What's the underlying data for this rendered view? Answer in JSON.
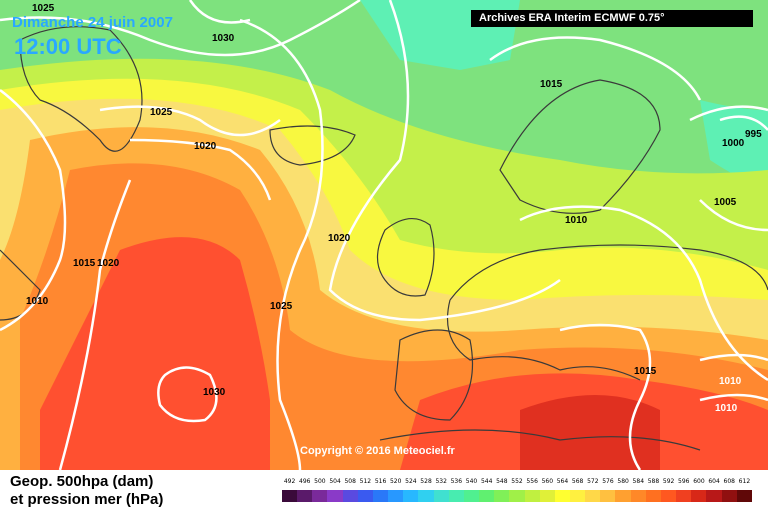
{
  "map": {
    "date": "Dimanche 24 juin 2007",
    "time": "12:00 UTC",
    "source": "Archives ERA Interim ECMWF 0.75°",
    "copyright": "Copyright © 2016 Meteociel.fr",
    "isobar_labels": [
      "1025",
      "1030",
      "1025",
      "1020",
      "1015",
      "1020",
      "1010",
      "1025",
      "1030",
      "1020",
      "1015",
      "1010",
      "1005",
      "1000",
      "995",
      "1015",
      "1010",
      "1010"
    ],
    "legend_line1": "Geop. 500hpa (dam)",
    "legend_line2": "et pression mer (hPa)",
    "scale_values": [
      "492",
      "496",
      "500",
      "504",
      "508",
      "512",
      "516",
      "520",
      "524",
      "528",
      "532",
      "536",
      "540",
      "544",
      "548",
      "552",
      "556",
      "560",
      "564",
      "568",
      "572",
      "576",
      "580",
      "584",
      "588",
      "592",
      "596",
      "600",
      "604",
      "608",
      "612"
    ],
    "scale_colors": [
      "#3a0a3a",
      "#5a1a6a",
      "#7a2a9a",
      "#8a3ac8",
      "#5a4ae0",
      "#3a5af0",
      "#2a78f8",
      "#2898ff",
      "#28b8ff",
      "#30d0f0",
      "#40e0d0",
      "#48ecb0",
      "#50f090",
      "#60f070",
      "#80f058",
      "#a0f048",
      "#c0f040",
      "#e0f038",
      "#ffff30",
      "#fff040",
      "#ffd848",
      "#ffc040",
      "#ffa030",
      "#ff8828",
      "#ff7020",
      "#ff5820",
      "#f04020",
      "#d82818",
      "#b81818",
      "#901010",
      "#600808"
    ],
    "map_colors": {
      "green": "#7ee27e",
      "cyan": "#5ef0b4",
      "yellowgreen": "#c4f04a",
      "yellow": "#f8f840",
      "paleyellow": "#fae070",
      "orange": "#ffb040",
      "darkorange": "#ff8830",
      "red": "#ff5030",
      "darkred": "#e03020",
      "land": "#3a3a3a",
      "isobar": "#ffffff"
    }
  }
}
